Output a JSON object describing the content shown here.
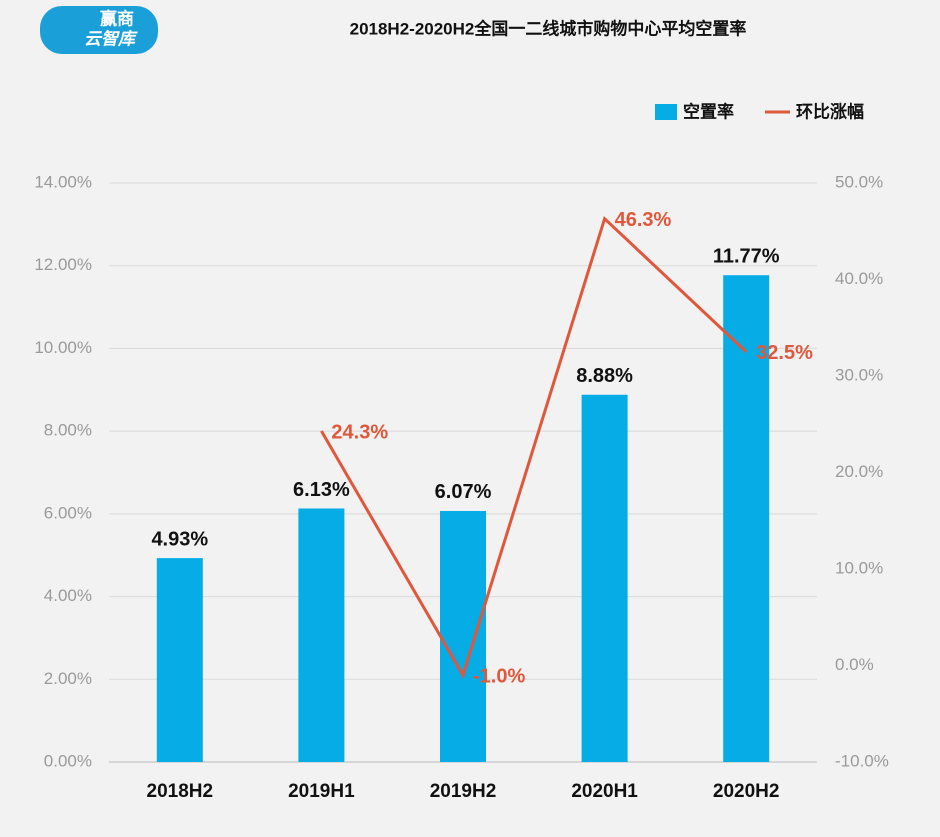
{
  "logo": {
    "line1": "赢商",
    "line2": "云智库"
  },
  "chart_data": {
    "type": "bar-line",
    "title": "2018H2-2020H2全国一二线城市购物中心平均空置率",
    "categories": [
      "2018H2",
      "2019H1",
      "2019H2",
      "2020H1",
      "2020H2"
    ],
    "series": [
      {
        "name": "空置率",
        "color": "#05ace6",
        "type": "bar",
        "values": [
          4.93,
          6.13,
          6.07,
          8.88,
          11.77
        ],
        "value_labels": [
          "4.93%",
          "6.13%",
          "6.07%",
          "8.88%",
          "11.77%"
        ]
      },
      {
        "name": "环比涨幅",
        "color": "#e0583b",
        "type": "line",
        "axis": "y2",
        "values": [
          null,
          24.3,
          -1.0,
          46.3,
          32.5
        ],
        "value_labels": [
          null,
          "24.3%",
          "-1.0%",
          "46.3%",
          "32.5%"
        ]
      }
    ],
    "ylim": [
      0,
      14
    ],
    "yticks": [
      {
        "value": 0,
        "label": "0.00%"
      },
      {
        "value": 2,
        "label": "2.00%"
      },
      {
        "value": 4,
        "label": "4.00%"
      },
      {
        "value": 6,
        "label": "6.00%"
      },
      {
        "value": 8,
        "label": "8.00%"
      },
      {
        "value": 10,
        "label": "10.00%"
      },
      {
        "value": 12,
        "label": "12.00%"
      },
      {
        "value": 14,
        "label": "14.00%"
      }
    ],
    "y2lim": [
      -10,
      50
    ],
    "y2ticks": [
      {
        "value": -10,
        "label": "-10.0%"
      },
      {
        "value": 0,
        "label": "0.0%"
      },
      {
        "value": 10,
        "label": "10.0%"
      },
      {
        "value": 20,
        "label": "20.0%"
      },
      {
        "value": 30,
        "label": "30.0%"
      },
      {
        "value": 40,
        "label": "40.0%"
      },
      {
        "value": 50,
        "label": "50.0%"
      }
    ],
    "grid": true,
    "legend": "top-right"
  }
}
